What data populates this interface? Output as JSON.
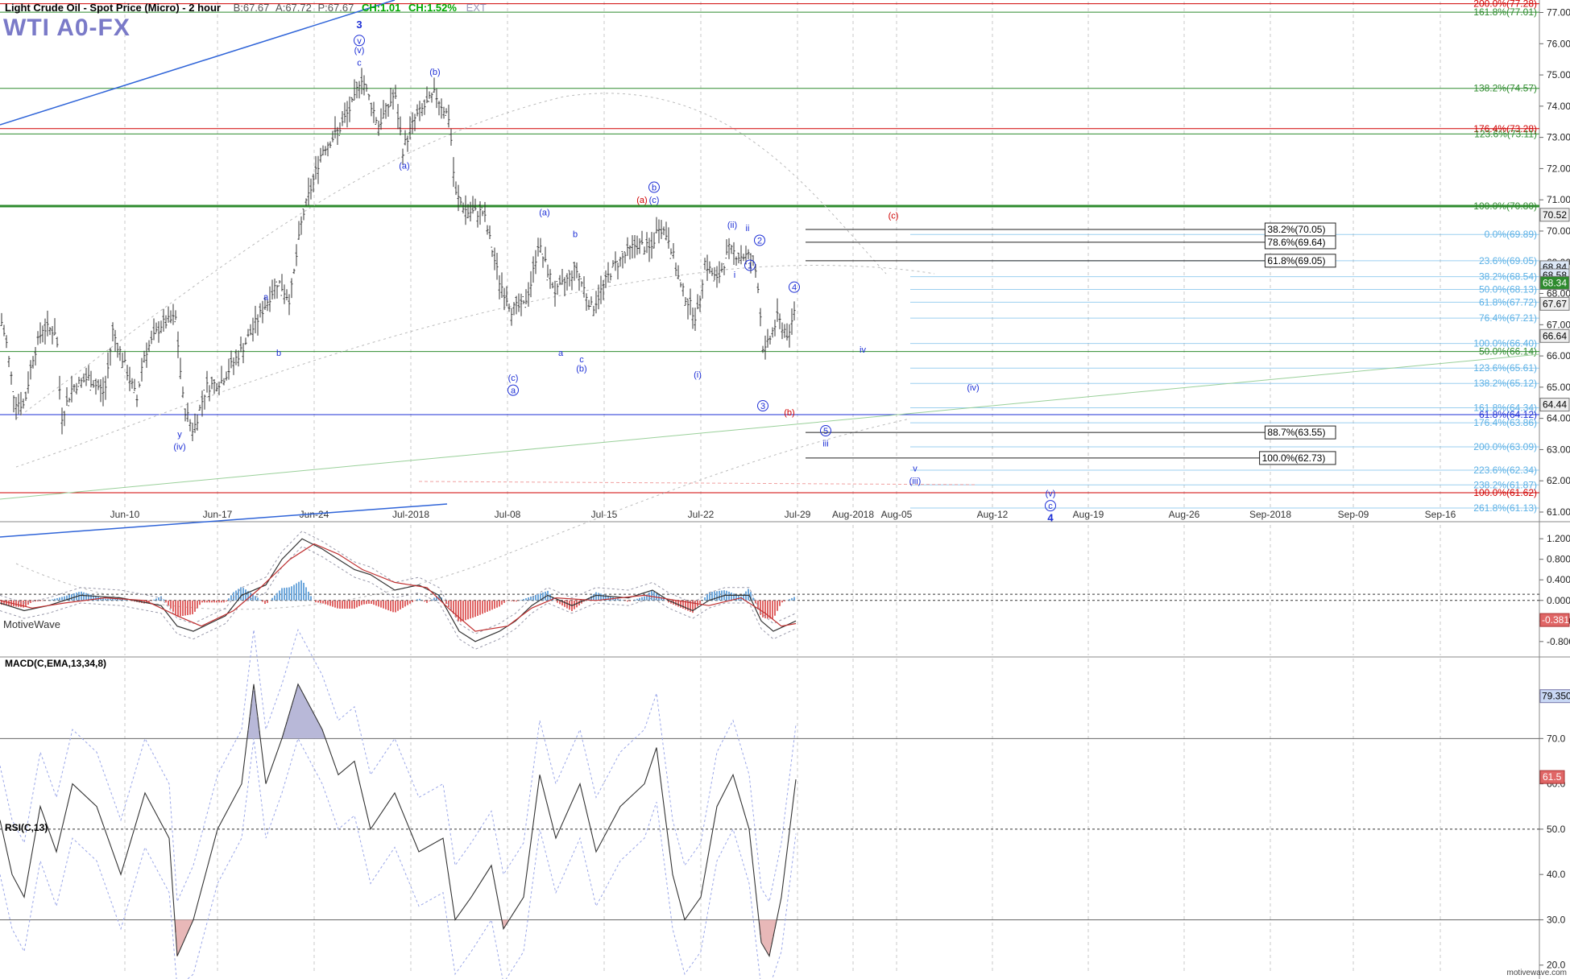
{
  "header": {
    "title": "Light Crude Oil - Spot Price (Micro) - 2 hour",
    "bid": "B:67.67",
    "ask": "A:67.72",
    "price": "P:67.67",
    "ch1": "CH:1.01",
    "ch2": "CH:1.52%",
    "ext": "EXT"
  },
  "symbol": "WTI A0-FX",
  "brand": "MotiveWave",
  "footer": "motivewave.com",
  "colors": {
    "green": "#2e8b2e",
    "red": "#d00000",
    "blue": "#1d2fd6",
    "light_blue": "#5ab0e6",
    "bars": "#333333"
  },
  "chart_data": [
    {
      "type": "ohlc",
      "title": "Light Crude Oil - Spot Price (Micro) - 2 hour",
      "ylim": [
        61.0,
        77.4
      ],
      "y_ticks": [
        "77.00",
        "76.00",
        "75.00",
        "74.00",
        "73.00",
        "72.00",
        "71.00",
        "70.00",
        "69.00",
        "68.00",
        "67.00",
        "66.00",
        "65.00",
        "64.00",
        "63.00",
        "62.00",
        "61.00"
      ],
      "x_ticks": [
        "Jun-10",
        "Jun-17",
        "Jun-24",
        "Jul-2018",
        "Jul-08",
        "Jul-15",
        "Jul-22",
        "Jul-29",
        "Aug-2018",
        "Aug-05",
        "Aug-12",
        "Aug-19",
        "Aug-26",
        "Sep-2018",
        "Sep-09",
        "Sep-16"
      ],
      "close_path": [
        [
          0,
          67.3
        ],
        [
          8,
          66.4
        ],
        [
          18,
          64.6
        ],
        [
          30,
          64.4
        ],
        [
          40,
          65.9
        ],
        [
          53,
          66.9
        ],
        [
          70,
          66.8
        ],
        [
          76,
          64.0
        ],
        [
          90,
          65.0
        ],
        [
          110,
          65.3
        ],
        [
          130,
          64.8
        ],
        [
          140,
          66.8
        ],
        [
          170,
          64.6
        ],
        [
          178,
          66.0
        ],
        [
          200,
          67.0
        ],
        [
          218,
          67.2
        ],
        [
          228,
          64.4
        ],
        [
          240,
          63.6
        ],
        [
          256,
          65.0
        ],
        [
          275,
          65.2
        ],
        [
          300,
          66.2
        ],
        [
          345,
          68.4
        ],
        [
          360,
          67.8
        ],
        [
          375,
          70.4
        ],
        [
          400,
          72.6
        ],
        [
          420,
          73.2
        ],
        [
          440,
          74.2
        ],
        [
          448,
          75.0
        ],
        [
          470,
          73.4
        ],
        [
          490,
          74.4
        ],
        [
          500,
          72.6
        ],
        [
          515,
          73.6
        ],
        [
          540,
          74.4
        ],
        [
          558,
          73.6
        ],
        [
          565,
          71.2
        ],
        [
          580,
          70.6
        ],
        [
          600,
          70.6
        ],
        [
          620,
          68.4
        ],
        [
          635,
          67.5
        ],
        [
          650,
          67.6
        ],
        [
          660,
          68.4
        ],
        [
          668,
          69.6
        ],
        [
          690,
          68.0
        ],
        [
          715,
          68.8
        ],
        [
          735,
          67.5
        ],
        [
          760,
          68.8
        ],
        [
          790,
          69.6
        ],
        [
          808,
          69.4
        ],
        [
          818,
          70.2
        ],
        [
          830,
          69.8
        ],
        [
          845,
          68.2
        ],
        [
          865,
          67.2
        ],
        [
          875,
          69.0
        ],
        [
          890,
          68.4
        ],
        [
          905,
          69.4
        ],
        [
          918,
          69.2
        ],
        [
          930,
          69.2
        ],
        [
          940,
          68.6
        ],
        [
          948,
          66.0
        ],
        [
          955,
          66.5
        ],
        [
          965,
          67.2
        ],
        [
          980,
          66.6
        ],
        [
          988,
          67.8
        ]
      ],
      "horizontal_levels": [
        {
          "label": "200.0%(77.28)",
          "value": 77.28,
          "color": "red"
        },
        {
          "label": "161.8%(77.01)",
          "value": 77.01,
          "color": "green"
        },
        {
          "label": "138.2%(74.57)",
          "value": 74.57,
          "color": "green"
        },
        {
          "label": "176.4%(73.28)",
          "value": 73.28,
          "color": "red"
        },
        {
          "label": "123.6%(73.11)",
          "value": 73.11,
          "color": "green"
        },
        {
          "label": "100.0%(70.80)",
          "value": 70.8,
          "color": "green"
        },
        {
          "label": "0.0%(69.89)",
          "value": 69.89,
          "color": "light_blue"
        },
        {
          "label": "23.6%(69.05)",
          "value": 69.05,
          "color": "light_blue"
        },
        {
          "label": "38.2%(68.54)",
          "value": 68.54,
          "color": "light_blue"
        },
        {
          "label": "50.0%(68.13)",
          "value": 68.13,
          "color": "light_blue"
        },
        {
          "label": "61.8%(67.72)",
          "value": 67.72,
          "color": "light_blue"
        },
        {
          "label": "76.4%(67.21)",
          "value": 67.21,
          "color": "light_blue"
        },
        {
          "label": "100.0%(66.40)",
          "value": 66.4,
          "color": "light_blue"
        },
        {
          "label": "50.0%(66.14)",
          "value": 66.14,
          "color": "green"
        },
        {
          "label": "123.6%(65.61)",
          "value": 65.61,
          "color": "light_blue"
        },
        {
          "label": "138.2%(65.12)",
          "value": 65.12,
          "color": "light_blue"
        },
        {
          "label": "161.8%(64.34)",
          "value": 64.34,
          "color": "light_blue"
        },
        {
          "label": "61.8%(64.12)",
          "value": 64.12,
          "color": "blue"
        },
        {
          "label": "176.4%(63.86)",
          "value": 63.86,
          "color": "light_blue"
        },
        {
          "label": "200.0%(63.09)",
          "value": 63.09,
          "color": "light_blue"
        },
        {
          "label": "223.6%(62.34)",
          "value": 62.34,
          "color": "light_blue"
        },
        {
          "label": "238.2%(61.87)",
          "value": 61.87,
          "color": "light_blue"
        },
        {
          "label": "100.0%(61.62)",
          "value": 61.62,
          "color": "red"
        },
        {
          "label": "261.8%(61.13)",
          "value": 61.13,
          "color": "light_blue"
        }
      ],
      "boxed_levels": [
        {
          "label": "38.2%(70.05)",
          "value": 70.05
        },
        {
          "label": "78.6%(69.64)",
          "value": 69.64
        },
        {
          "label": "61.8%(69.05)",
          "value": 69.05
        },
        {
          "label": "88.7%(63.55)",
          "value": 63.55
        },
        {
          "label": "100.0%(62.73)",
          "value": 62.73
        }
      ],
      "price_tags": [
        {
          "label": "70.52",
          "value": 70.52,
          "bg": "#eeeeee",
          "fg": "#000000"
        },
        {
          "label": "68.84",
          "value": 68.84,
          "bg": "#dde8f7",
          "fg": "#000000"
        },
        {
          "label": "68.58",
          "value": 68.58,
          "bg": "#dde8f7",
          "fg": "#000000"
        },
        {
          "label": "68.34",
          "value": 68.34,
          "bg": "#2e8b2e",
          "fg": "#ffffff"
        },
        {
          "label": "67.67",
          "value": 67.67,
          "bg": "#eeeeee",
          "fg": "#000000"
        },
        {
          "label": "66.64",
          "value": 66.64,
          "bg": "#eeeeee",
          "fg": "#000000"
        },
        {
          "label": "64.44",
          "value": 64.44,
          "bg": "#eeeeee",
          "fg": "#000000"
        }
      ],
      "wave_labels": [
        {
          "t": "3",
          "x": 446,
          "y": 76.5,
          "c": "blue",
          "b": true
        },
        {
          "t": "v",
          "x": 446,
          "y": 76.0,
          "c": "blue",
          "circle": true
        },
        {
          "t": "(v)",
          "x": 446,
          "y": 75.7,
          "c": "blue"
        },
        {
          "t": "c",
          "x": 446,
          "y": 75.3,
          "c": "blue"
        },
        {
          "t": "(b)",
          "x": 540,
          "y": 75.0,
          "c": "blue"
        },
        {
          "t": "(a)",
          "x": 502,
          "y": 72.0,
          "c": "blue"
        },
        {
          "t": "a",
          "x": 330,
          "y": 67.8,
          "c": "blue"
        },
        {
          "t": "b",
          "x": 346,
          "y": 66.0,
          "c": "blue"
        },
        {
          "t": "y",
          "x": 223,
          "y": 63.4,
          "c": "blue"
        },
        {
          "t": "(iv)",
          "x": 223,
          "y": 63.0,
          "c": "blue"
        },
        {
          "t": "b",
          "x": 812,
          "y": 71.3,
          "c": "blue",
          "circle": true
        },
        {
          "t": "(c)",
          "x": 812,
          "y": 70.9,
          "c": "blue"
        },
        {
          "t": "(a)",
          "x": 797,
          "y": 70.9,
          "c": "red"
        },
        {
          "t": "(a)",
          "x": 676,
          "y": 70.5,
          "c": "blue"
        },
        {
          "t": "b",
          "x": 714,
          "y": 69.8,
          "c": "blue"
        },
        {
          "t": "a",
          "x": 696,
          "y": 66.0,
          "c": "blue"
        },
        {
          "t": "c",
          "x": 722,
          "y": 65.8,
          "c": "blue"
        },
        {
          "t": "(b)",
          "x": 722,
          "y": 65.5,
          "c": "blue"
        },
        {
          "t": "(c)",
          "x": 637,
          "y": 65.2,
          "c": "blue"
        },
        {
          "t": "a",
          "x": 637,
          "y": 64.8,
          "c": "blue",
          "circle": true
        },
        {
          "t": "(ii)",
          "x": 909,
          "y": 70.1,
          "c": "blue"
        },
        {
          "t": "ii",
          "x": 928,
          "y": 70.0,
          "c": "blue"
        },
        {
          "t": "2",
          "x": 943,
          "y": 69.6,
          "c": "blue",
          "circle": true
        },
        {
          "t": "1",
          "x": 931,
          "y": 68.8,
          "c": "blue",
          "circle": true
        },
        {
          "t": "i",
          "x": 912,
          "y": 68.5,
          "c": "blue"
        },
        {
          "t": "(i)",
          "x": 866,
          "y": 65.3,
          "c": "blue"
        },
        {
          "t": "4",
          "x": 986,
          "y": 68.1,
          "c": "blue",
          "circle": true
        },
        {
          "t": "3",
          "x": 947,
          "y": 64.3,
          "c": "blue",
          "circle": true
        },
        {
          "t": "(b)",
          "x": 980,
          "y": 64.1,
          "c": "red"
        },
        {
          "t": "5",
          "x": 1025,
          "y": 63.5,
          "c": "blue",
          "circle": true
        },
        {
          "t": "iii",
          "x": 1025,
          "y": 63.1,
          "c": "blue"
        },
        {
          "t": "iv",
          "x": 1071,
          "y": 66.1,
          "c": "blue"
        },
        {
          "t": "(iv)",
          "x": 1208,
          "y": 64.9,
          "c": "blue"
        },
        {
          "t": "(c)",
          "x": 1109,
          "y": 70.4,
          "c": "red"
        },
        {
          "t": "v",
          "x": 1136,
          "y": 62.3,
          "c": "blue"
        },
        {
          "t": "(iii)",
          "x": 1136,
          "y": 61.9,
          "c": "blue"
        },
        {
          "t": "(v)",
          "x": 1304,
          "y": 61.5,
          "c": "blue"
        },
        {
          "t": "c",
          "x": 1304,
          "y": 61.1,
          "c": "blue",
          "circle": true
        },
        {
          "t": "4",
          "x": 1304,
          "y": 60.7,
          "c": "blue",
          "b": true
        }
      ]
    },
    {
      "type": "line",
      "title": "MACD(C,EMA,13,34,8)",
      "ylim": [
        -1.1,
        1.5
      ],
      "y_ticks": [
        "1.200",
        "0.800",
        "0.400",
        "0.000",
        "-0.400",
        "-0.800"
      ],
      "current_value": "-0.381",
      "macd": [
        [
          0,
          -0.05
        ],
        [
          30,
          -0.2
        ],
        [
          60,
          -0.1
        ],
        [
          100,
          0.1
        ],
        [
          150,
          0.05
        ],
        [
          200,
          -0.1
        ],
        [
          220,
          -0.5
        ],
        [
          240,
          -0.6
        ],
        [
          280,
          -0.3
        ],
        [
          300,
          0.1
        ],
        [
          330,
          0.3
        ],
        [
          350,
          0.8
        ],
        [
          375,
          1.2
        ],
        [
          400,
          1.0
        ],
        [
          420,
          0.8
        ],
        [
          440,
          0.6
        ],
        [
          460,
          0.5
        ],
        [
          490,
          0.2
        ],
        [
          520,
          0.3
        ],
        [
          545,
          0.1
        ],
        [
          570,
          -0.6
        ],
        [
          590,
          -0.8
        ],
        [
          620,
          -0.6
        ],
        [
          640,
          -0.4
        ],
        [
          660,
          -0.1
        ],
        [
          680,
          0.1
        ],
        [
          710,
          -0.1
        ],
        [
          740,
          0.1
        ],
        [
          780,
          0.05
        ],
        [
          810,
          0.2
        ],
        [
          830,
          0.0
        ],
        [
          860,
          -0.2
        ],
        [
          880,
          0.0
        ],
        [
          900,
          0.1
        ],
        [
          930,
          0.1
        ],
        [
          945,
          -0.4
        ],
        [
          960,
          -0.6
        ],
        [
          988,
          -0.4
        ]
      ],
      "signal": [
        [
          0,
          0.0
        ],
        [
          40,
          -0.15
        ],
        [
          80,
          -0.05
        ],
        [
          130,
          0.05
        ],
        [
          180,
          0.0
        ],
        [
          220,
          -0.3
        ],
        [
          250,
          -0.5
        ],
        [
          290,
          -0.2
        ],
        [
          320,
          0.2
        ],
        [
          360,
          0.8
        ],
        [
          390,
          1.1
        ],
        [
          420,
          0.9
        ],
        [
          450,
          0.6
        ],
        [
          490,
          0.35
        ],
        [
          530,
          0.25
        ],
        [
          560,
          -0.2
        ],
        [
          590,
          -0.6
        ],
        [
          630,
          -0.5
        ],
        [
          660,
          -0.15
        ],
        [
          690,
          0.05
        ],
        [
          740,
          0.0
        ],
        [
          800,
          0.1
        ],
        [
          840,
          0.0
        ],
        [
          880,
          -0.1
        ],
        [
          920,
          0.05
        ],
        [
          950,
          -0.25
        ],
        [
          970,
          -0.5
        ],
        [
          988,
          -0.45
        ]
      ]
    },
    {
      "type": "line",
      "title": "RSI(C,13)",
      "ylim": [
        18,
        88
      ],
      "y_ticks": [
        "80.0",
        "70.0",
        "60.0",
        "50.0",
        "40.0",
        "30.0",
        "20.0"
      ],
      "current_value": "61.5",
      "upper_band_value": "79.350",
      "levels": [
        70,
        50,
        30
      ],
      "rsi": [
        [
          0,
          52
        ],
        [
          15,
          40
        ],
        [
          30,
          35
        ],
        [
          50,
          55
        ],
        [
          70,
          45
        ],
        [
          90,
          60
        ],
        [
          120,
          55
        ],
        [
          150,
          40
        ],
        [
          180,
          58
        ],
        [
          210,
          48
        ],
        [
          220,
          22
        ],
        [
          240,
          30
        ],
        [
          270,
          50
        ],
        [
          300,
          60
        ],
        [
          315,
          82
        ],
        [
          330,
          60
        ],
        [
          350,
          70
        ],
        [
          370,
          82
        ],
        [
          400,
          72
        ],
        [
          420,
          62
        ],
        [
          440,
          65
        ],
        [
          460,
          50
        ],
        [
          490,
          58
        ],
        [
          520,
          45
        ],
        [
          550,
          48
        ],
        [
          565,
          30
        ],
        [
          585,
          35
        ],
        [
          610,
          42
        ],
        [
          625,
          28
        ],
        [
          650,
          35
        ],
        [
          670,
          62
        ],
        [
          690,
          48
        ],
        [
          720,
          60
        ],
        [
          740,
          45
        ],
        [
          770,
          55
        ],
        [
          800,
          60
        ],
        [
          815,
          68
        ],
        [
          835,
          40
        ],
        [
          850,
          30
        ],
        [
          870,
          35
        ],
        [
          890,
          55
        ],
        [
          910,
          62
        ],
        [
          930,
          50
        ],
        [
          945,
          25
        ],
        [
          955,
          22
        ],
        [
          970,
          35
        ],
        [
          988,
          61
        ]
      ]
    }
  ]
}
